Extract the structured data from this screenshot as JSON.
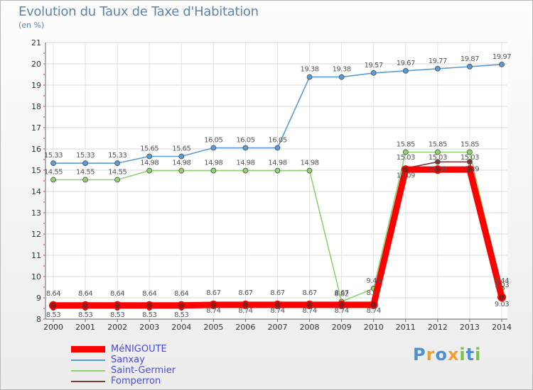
{
  "chart_data": {
    "type": "line",
    "title": "Evolution du Taux de Taxe d'Habitation",
    "subtitle": "(en %)",
    "xlabel": "",
    "ylabel": "",
    "ylim": [
      8,
      21
    ],
    "yticks": [
      "8",
      "9",
      "10",
      "11",
      "12",
      "13",
      "14",
      "15",
      "16",
      "17",
      "18",
      "19",
      "20",
      "21"
    ],
    "categories": [
      "2000",
      "2001",
      "2002",
      "2003",
      "2004",
      "2005",
      "2006",
      "2007",
      "2008",
      "2009",
      "2010",
      "2011",
      "2012",
      "2013",
      "2014"
    ],
    "grid": true,
    "series": [
      {
        "name": "MéNIGOUTE",
        "color": "#ff0000",
        "values": [
          8.64,
          8.64,
          8.64,
          8.64,
          8.64,
          8.67,
          8.67,
          8.67,
          8.67,
          8.67,
          8.67,
          15.03,
          15.03,
          15.03,
          9.03
        ],
        "labels": [
          "8.64",
          "8.64",
          "8.64",
          "8.64",
          "8.64",
          "8.67",
          "8.67",
          "8.67",
          "8.67",
          "8.67",
          "8.67",
          "15.03",
          "15.03",
          "15.03",
          "9.03"
        ]
      },
      {
        "name": "Sanxay",
        "color": "#5b9bd5",
        "values": [
          15.33,
          15.33,
          15.33,
          15.65,
          15.65,
          16.05,
          16.05,
          16.05,
          19.38,
          19.38,
          19.57,
          19.67,
          19.77,
          19.87,
          19.97
        ],
        "labels": [
          "15.33",
          "15.33",
          "15.33",
          "15.65",
          "15.65",
          "16.05",
          "16.05",
          "16.05",
          "19.38",
          "19.38",
          "19.57",
          "19.67",
          "19.77",
          "19.87",
          "19.97"
        ]
      },
      {
        "name": "Saint-Germier",
        "color": "#8fd16e",
        "values": [
          14.55,
          14.55,
          14.55,
          14.98,
          14.98,
          14.98,
          14.98,
          14.98,
          14.98,
          8.82,
          9.44,
          15.85,
          15.85,
          15.85,
          9.44
        ],
        "labels": [
          "14.55",
          "14.55",
          "14.55",
          "14.98",
          "14.98",
          "14.98",
          "14.98",
          "14.98",
          "14.98",
          "8.82",
          "9.44",
          "15.85",
          "15.85",
          "15.85",
          "9.44"
        ]
      },
      {
        "name": "Fomperron",
        "color": "#7b3a3a",
        "values": [
          8.53,
          8.53,
          8.53,
          8.53,
          8.53,
          8.74,
          8.74,
          8.74,
          8.74,
          8.74,
          8.74,
          15.09,
          15.39,
          15.39,
          9.03
        ],
        "labels": [
          "8.53",
          "8.53",
          "8.53",
          "8.53",
          "8.53",
          "8.74",
          "8.74",
          "8.74",
          "8.74",
          "8.74",
          "8.74",
          "15.09",
          "15.39",
          "15.39",
          "9.03"
        ]
      }
    ],
    "legend_position": "bottom-left"
  },
  "logo": {
    "letters": [
      "P",
      "r",
      "o",
      "x",
      "i",
      "t",
      "i"
    ],
    "colors": [
      "#4a90d9",
      "#f0a030",
      "#4a90d9",
      "#f0a030",
      "#7cc04a",
      "#4a90d9",
      "#7cc04a"
    ]
  }
}
